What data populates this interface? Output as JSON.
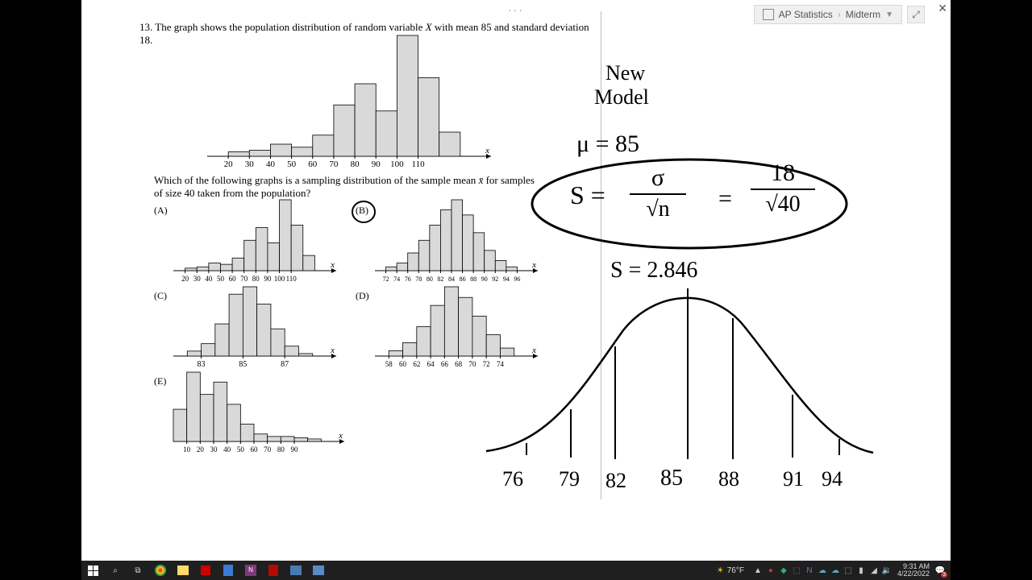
{
  "breadcrumb": {
    "course": "AP Statistics",
    "section": "Midterm"
  },
  "question": {
    "number": "13.",
    "stem1": "The graph shows the population distribution of random variable ",
    "var": "X",
    "stem2": " with mean 85 and standard deviation 18.",
    "sub1": "Which of the following graphs is a sampling distribution of the sample mean ",
    "xbar": "x̄",
    "sub2": " for samples of size 40 taken from the population?"
  },
  "main_hist": {
    "type": "histogram",
    "ticks": [
      20,
      30,
      40,
      50,
      60,
      70,
      80,
      90,
      100,
      110
    ],
    "heights": [
      0,
      3,
      4,
      8,
      6,
      14,
      34,
      48,
      30,
      80,
      52,
      16
    ],
    "bar_fill": "#d9d9d9",
    "bar_stroke": "#000",
    "axis_label": "x"
  },
  "choices": {
    "A": {
      "label": "(A)",
      "ticks": [
        20,
        30,
        40,
        50,
        60,
        70,
        80,
        90,
        100,
        110
      ],
      "heights": [
        0,
        2,
        3,
        6,
        5,
        10,
        24,
        34,
        22,
        56,
        36,
        12
      ],
      "axis": "x"
    },
    "B": {
      "label": "(B)",
      "ticks": [
        72,
        74,
        76,
        78,
        80,
        82,
        84,
        86,
        88,
        90,
        92,
        94,
        96
      ],
      "heights": [
        0,
        3,
        6,
        14,
        24,
        36,
        48,
        56,
        44,
        30,
        16,
        8,
        3
      ],
      "axis": "x",
      "circled": true
    },
    "C": {
      "label": "(C)",
      "ticks": [
        83,
        85,
        87
      ],
      "heights": [
        0,
        4,
        10,
        26,
        50,
        56,
        42,
        22,
        8,
        2
      ],
      "axis": "x",
      "tick_positions": [
        2,
        5,
        8
      ]
    },
    "D": {
      "label": "(D)",
      "ticks": [
        58,
        60,
        62,
        64,
        66,
        68,
        70,
        72,
        74
      ],
      "heights": [
        0,
        4,
        10,
        22,
        38,
        52,
        44,
        30,
        16,
        6
      ],
      "axis": "x"
    },
    "E": {
      "label": "(E)",
      "ticks": [
        10,
        20,
        30,
        40,
        50,
        60,
        70,
        80,
        90
      ],
      "heights": [
        26,
        56,
        38,
        48,
        30,
        14,
        6,
        4,
        4,
        3,
        2
      ],
      "axis": "x"
    }
  },
  "notes": {
    "title1": "New",
    "title2": "Model",
    "mu": "μ = 85",
    "s_formula_left": "S =",
    "sigma": "σ",
    "over1": "√n",
    "eq": "=",
    "num2": "18",
    "den2": "√40",
    "s_val": "S = 2.846",
    "curve_labels": [
      "76",
      "79",
      "82",
      "85",
      "88",
      "91",
      "94"
    ]
  },
  "taskbar": {
    "weather": "76°F",
    "time": "9:31 AM",
    "date": "4/22/2022",
    "notif": "3"
  },
  "colors": {
    "bar_fill": "#d9d9d9",
    "bar_stroke": "#000000",
    "bg": "#ffffff",
    "ink": "#000000"
  }
}
